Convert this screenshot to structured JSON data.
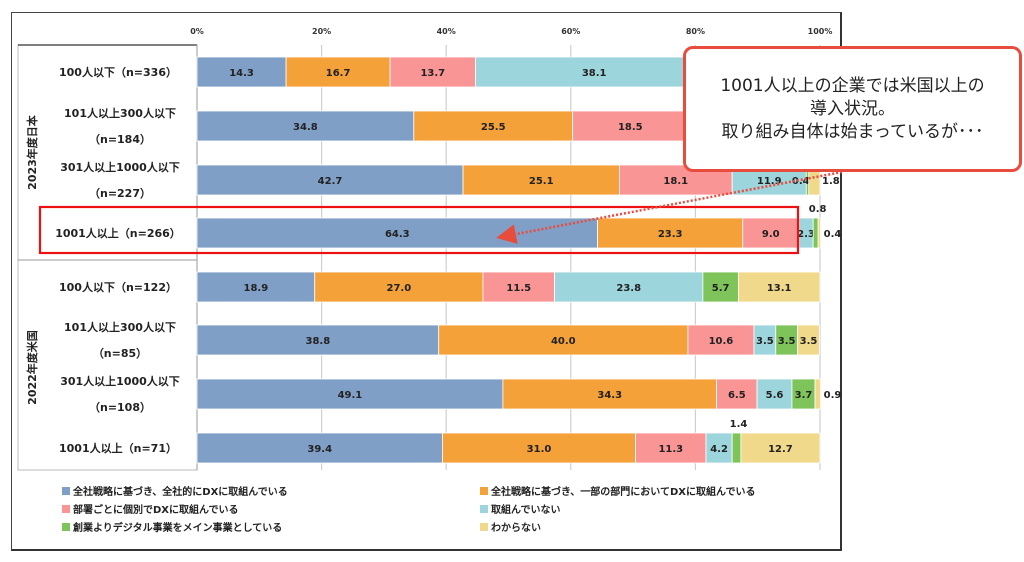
{
  "chart_data": {
    "type": "bar",
    "orientation": "horizontal",
    "stacked": true,
    "xlabel": "",
    "ylabel": "",
    "xlim": [
      0,
      100
    ],
    "x_ticks": [
      "0%",
      "20%",
      "40%",
      "60%",
      "80%",
      "100%"
    ],
    "grid": true,
    "legend_position": "bottom",
    "groups": [
      {
        "label": "2023年度日本",
        "rows": [
          0,
          1,
          2,
          3
        ]
      },
      {
        "label": "2022年度米国",
        "rows": [
          4,
          5,
          6,
          7
        ]
      }
    ],
    "categories": [
      [
        "100人以下（n=336）"
      ],
      [
        "101人以上300人以下",
        "（n=184）"
      ],
      [
        "301人以上1000人以下",
        "（n=227）"
      ],
      [
        "1001人以上（n=266）"
      ],
      [
        "100人以下（n=122）"
      ],
      [
        "101人以上300人以下",
        "（n=85）"
      ],
      [
        "301人以上1000人以下",
        "（n=108）"
      ],
      [
        "1001人以上（n=71）"
      ]
    ],
    "series": [
      {
        "name": "全社戦略に基づき、全社的にDXに取組んでいる",
        "color": "#7f9fc7",
        "values": [
          14.3,
          34.8,
          42.7,
          64.3,
          18.9,
          38.8,
          49.1,
          39.4
        ]
      },
      {
        "name": "全社戦略に基づき、一部の部門においてDXに取組んでいる",
        "color": "#f4a139",
        "values": [
          16.7,
          25.5,
          25.1,
          23.3,
          27.0,
          40.0,
          34.3,
          31.0
        ]
      },
      {
        "name": "部署ごとに個別でDXに取組んでいる",
        "color": "#fa9595",
        "values": [
          13.7,
          18.5,
          18.1,
          9.0,
          11.5,
          10.6,
          6.5,
          11.3
        ]
      },
      {
        "name": "取組んでいない",
        "color": "#9dd5dd",
        "values": [
          38.1,
          null,
          11.9,
          2.3,
          23.8,
          3.5,
          5.6,
          4.2
        ]
      },
      {
        "name": "創業よりデジタル事業をメイン事業としている",
        "color": "#7ec45a",
        "values": [
          null,
          null,
          0.4,
          0.8,
          5.7,
          3.5,
          3.7,
          1.4
        ]
      },
      {
        "name": "わからない",
        "color": "#f1d98b",
        "values": [
          null,
          null,
          1.8,
          0.4,
          13.1,
          3.5,
          0.9,
          12.7
        ]
      }
    ],
    "label_overrides": {
      "outside_right": [
        [
          2,
          5
        ],
        [
          3,
          5
        ],
        [
          6,
          5
        ]
      ],
      "above": [
        [
          3,
          4
        ],
        [
          7,
          4
        ]
      ]
    },
    "highlight_row": 3
  },
  "callout": {
    "lines": [
      "1001人以上の企業では米国以上の",
      "導入状況。",
      "取り組み自体は始まっているが･･･"
    ],
    "border_color": "#e84c3d"
  },
  "highlight_color": "#ee1111"
}
